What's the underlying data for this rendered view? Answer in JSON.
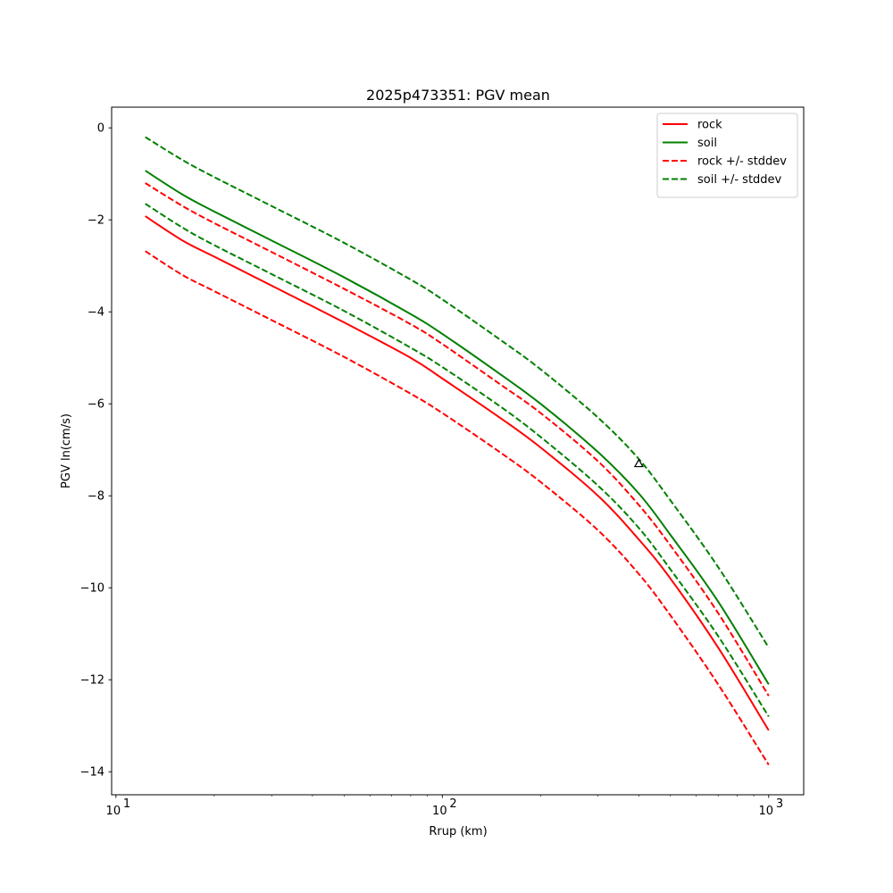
{
  "chart_data": {
    "type": "line",
    "title": "2025p473351: PGV mean",
    "xlabel": "Rrup (km)",
    "ylabel": "PGV ln(cm/s)",
    "xscale": "log",
    "xlim": [
      9.7,
      1280
    ],
    "ylim": [
      -14.5,
      0.45
    ],
    "xticks": [
      {
        "value": 10,
        "base": "10",
        "exp": "1"
      },
      {
        "value": 100,
        "base": "10",
        "exp": "2"
      },
      {
        "value": 1000,
        "base": "10",
        "exp": "3"
      }
    ],
    "yticks": [
      {
        "value": 0,
        "label": "0"
      },
      {
        "value": -2,
        "label": "−2"
      },
      {
        "value": -4,
        "label": "−4"
      },
      {
        "value": -6,
        "label": "−6"
      },
      {
        "value": -8,
        "label": "−8"
      },
      {
        "value": -10,
        "label": "−10"
      },
      {
        "value": -12,
        "label": "−12"
      },
      {
        "value": -14,
        "label": "−14"
      }
    ],
    "grid": false,
    "legend": "top-right",
    "x": [
      12.3,
      16,
      20,
      30,
      50,
      80,
      100,
      150,
      200,
      300,
      400,
      500,
      700,
      1000
    ],
    "series": [
      {
        "name": "rock",
        "color": "#ff0000",
        "style": "solid",
        "values": [
          -1.92,
          -2.45,
          -2.8,
          -3.43,
          -4.23,
          -5.0,
          -5.45,
          -6.3,
          -6.95,
          -8.0,
          -8.95,
          -9.8,
          -11.3,
          -13.1
        ]
      },
      {
        "name": "soil",
        "color": "#008000",
        "style": "solid",
        "values": [
          -0.93,
          -1.45,
          -1.82,
          -2.45,
          -3.25,
          -4.05,
          -4.48,
          -5.35,
          -6.0,
          -7.05,
          -7.95,
          -8.85,
          -10.3,
          -12.1
        ]
      },
      {
        "name": "rock +/- stddev",
        "color": "#ff0000",
        "style": "dashed",
        "values": [
          -1.2,
          -1.7,
          -2.07,
          -2.7,
          -3.5,
          -4.27,
          -4.7,
          -5.57,
          -6.2,
          -7.25,
          -8.2,
          -9.08,
          -10.55,
          -12.35
        ]
      },
      {
        "name": "",
        "color": "#ff0000",
        "style": "dashed",
        "values": [
          -2.68,
          -3.2,
          -3.55,
          -4.18,
          -4.98,
          -5.78,
          -6.2,
          -7.05,
          -7.7,
          -8.75,
          -9.7,
          -10.6,
          -12.1,
          -13.85
        ]
      },
      {
        "name": "soil +/- stddev",
        "color": "#008000",
        "style": "dashed",
        "values": [
          -0.2,
          -0.7,
          -1.07,
          -1.7,
          -2.5,
          -3.3,
          -3.73,
          -4.6,
          -5.25,
          -6.3,
          -7.2,
          -8.1,
          -9.55,
          -11.3
        ]
      },
      {
        "name": "",
        "color": "#008000",
        "style": "dashed",
        "values": [
          -1.65,
          -2.17,
          -2.55,
          -3.18,
          -3.98,
          -4.78,
          -5.2,
          -6.05,
          -6.72,
          -7.78,
          -8.7,
          -9.6,
          -11.05,
          -12.8
        ]
      }
    ],
    "observations": [
      {
        "x": 400,
        "y": -7.3,
        "marker": "triangle-open",
        "color": "#000000"
      }
    ]
  }
}
